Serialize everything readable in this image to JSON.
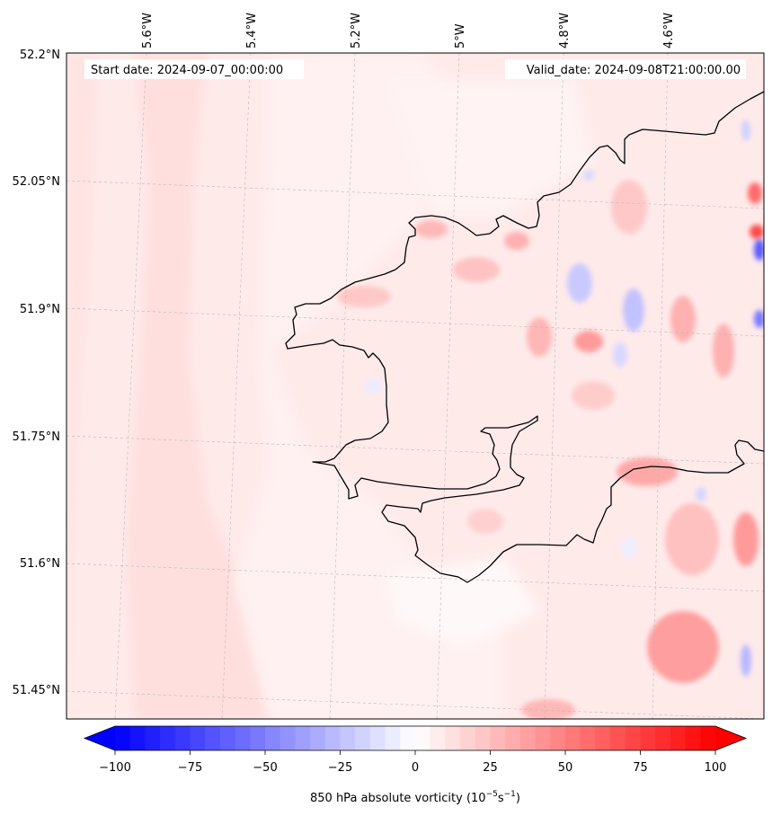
{
  "header": {
    "start_date": "Start date: 2024-09-07_00:00:00",
    "valid_date": "Valid_date: 2024-09-08T21:00:00.00"
  },
  "longitude_labels": [
    "5.6°W",
    "5.4°W",
    "5.2°W",
    "5°W",
    "4.8°W",
    "4.6°W"
  ],
  "latitude_labels": [
    "52.2°N",
    "52.05°N",
    "51.9°N",
    "51.75°N",
    "51.6°N",
    "51.45°N"
  ],
  "colorbar": {
    "ticks": [
      "−100",
      "−75",
      "−50",
      "−25",
      "0",
      "25",
      "50",
      "75",
      "100"
    ],
    "label_text": "850 hPa absolute vorticity (10",
    "label_exp1": "−5",
    "label_mid": "s",
    "label_exp2": "−1",
    "label_end": ")",
    "min": -100,
    "max": 100,
    "negative_color": "#0000ff",
    "positive_color": "#ff0000",
    "extend": "both"
  },
  "colors": {
    "background_field": "#ffeaea",
    "coastline": "#000000",
    "gridline": "#b0b0b0"
  }
}
